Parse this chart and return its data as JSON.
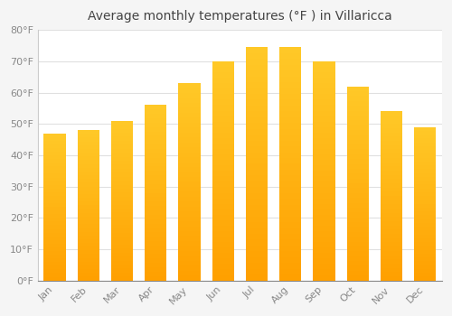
{
  "title": "Average monthly temperatures (°F ) in Villaricca",
  "months": [
    "Jan",
    "Feb",
    "Mar",
    "Apr",
    "May",
    "Jun",
    "Jul",
    "Aug",
    "Sep",
    "Oct",
    "Nov",
    "Dec"
  ],
  "values": [
    47,
    48,
    51,
    56,
    63,
    70,
    74.5,
    74.5,
    70,
    62,
    54,
    49
  ],
  "bar_color_top": "#FFCA28",
  "bar_color_bottom": "#FFA000",
  "ylim": [
    0,
    80
  ],
  "yticks": [
    0,
    10,
    20,
    30,
    40,
    50,
    60,
    70,
    80
  ],
  "ytick_labels": [
    "0°F",
    "10°F",
    "20°F",
    "30°F",
    "40°F",
    "50°F",
    "60°F",
    "70°F",
    "80°F"
  ],
  "plot_bg_color": "#ffffff",
  "fig_bg_color": "#f5f5f5",
  "grid_color": "#e0e0e0",
  "title_fontsize": 10,
  "tick_fontsize": 8,
  "font_family": "DejaVu Sans"
}
